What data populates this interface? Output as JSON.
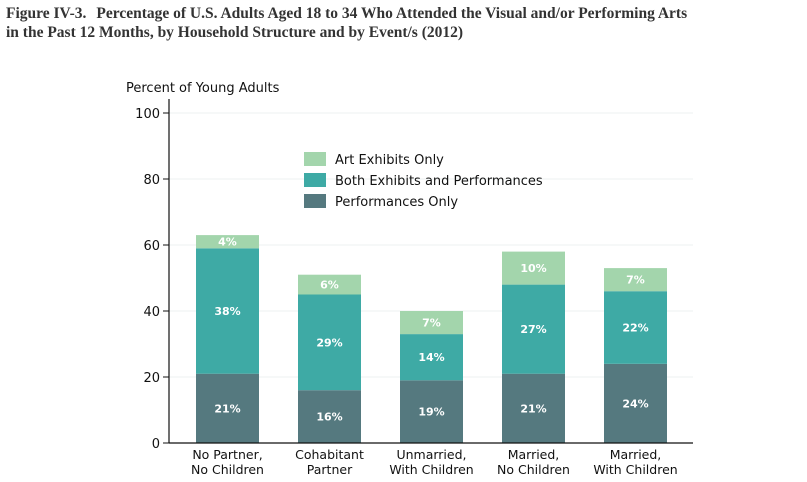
{
  "figure": {
    "number": "Figure IV-3.",
    "title_line1": "Percentage of U.S. Adults Aged 18 to 34 Who Attended the Visual and/or Performing Arts",
    "title_line2": "in the Past 12 Months, by Household Structure and by Event/s (2012)"
  },
  "chart_data": {
    "type": "bar",
    "stacked": true,
    "title": "Percentage of U.S. Adults Aged 18 to 34 Who Attended the Visual and/or Performing Arts in the Past 12 Months, by Household Structure and by Event/s (2012)",
    "xlabel": "",
    "ylabel": "Percent of Young Adults",
    "ylim": [
      0,
      100
    ],
    "yticks": [
      0,
      20,
      40,
      60,
      80,
      100
    ],
    "grid": true,
    "legend_position": "top-center",
    "categories": [
      [
        "No Partner,",
        "No Children"
      ],
      [
        "Cohabitant",
        "Partner"
      ],
      [
        "Unmarried,",
        "With Children"
      ],
      [
        "Married,",
        "No Children"
      ],
      [
        "Married,",
        "With Children"
      ]
    ],
    "series": [
      {
        "name": "Performances Only",
        "color": "#55797f",
        "values": [
          21,
          16,
          19,
          21,
          24
        ],
        "labels": [
          "21%",
          "16%",
          "19%",
          "21%",
          "24%"
        ]
      },
      {
        "name": "Both Exhibits and Performances",
        "color": "#3eaaa5",
        "values": [
          38,
          29,
          14,
          27,
          22
        ],
        "labels": [
          "38%",
          "29%",
          "14%",
          "27%",
          "22%"
        ]
      },
      {
        "name": "Art Exhibits Only",
        "color": "#a3d5ac",
        "values": [
          4,
          6,
          7,
          10,
          7
        ],
        "labels": [
          "4%",
          "6%",
          "7%",
          "10%",
          "7%"
        ]
      }
    ],
    "legend_order": [
      "Art Exhibits Only",
      "Both Exhibits and Performances",
      "Performances Only"
    ]
  }
}
